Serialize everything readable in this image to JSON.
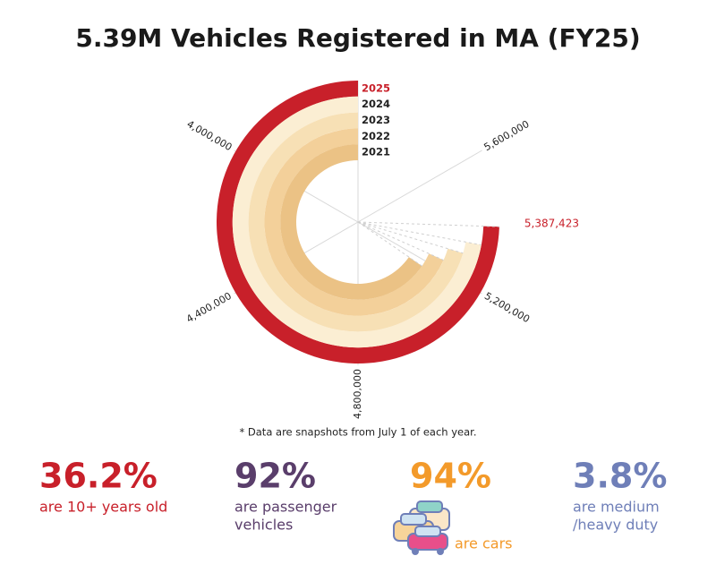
{
  "chart_data": {
    "type": "radial_bar",
    "title": "5.39M Vehicles Registered in MA (FY25)",
    "note": "*  Data are snapshots from July 1 of each year.",
    "categories": [
      "2025",
      "2024",
      "2023",
      "2022",
      "2021"
    ],
    "values": [
      5387423,
      5330000,
      5290000,
      5240000,
      5170000
    ],
    "value_labels": [
      "5,387,423",
      null,
      null,
      null,
      null
    ],
    "colors": [
      "#c8202a",
      "#fbeed3",
      "#f7e0b5",
      "#f3d09a",
      "#ebc285"
    ],
    "label_colors": [
      "#c8202a",
      "#222222",
      "#222222",
      "#222222",
      "#222222"
    ],
    "xlim": [
      3600000,
      6000000
    ],
    "xticks": [
      {
        "value": 4000000,
        "label": "4,000,000"
      },
      {
        "value": 4400000,
        "label": "4,400,000"
      },
      {
        "value": 4800000,
        "label": "4,800,000"
      },
      {
        "value": 5200000,
        "label": "5,200,000"
      },
      {
        "value": 5600000,
        "label": "5,600,000"
      }
    ],
    "grid": true
  },
  "stats": [
    {
      "value": "36.2%",
      "label": [
        "are 10+ years old"
      ],
      "color": "#c8202a"
    },
    {
      "value": "92%",
      "label": [
        "are passenger",
        "vehicles"
      ],
      "color": "#5a3e6b"
    },
    {
      "value": "94%",
      "label": [
        "are cars"
      ],
      "color": "#f39a2a"
    },
    {
      "value": "3.8%",
      "label": [
        "are medium",
        "/heavy duty"
      ],
      "color": "#6f7fb8"
    }
  ]
}
